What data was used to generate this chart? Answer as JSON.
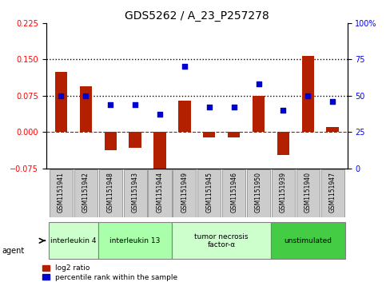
{
  "title": "GDS5262 / A_23_P257278",
  "samples": [
    "GSM1151941",
    "GSM1151942",
    "GSM1151948",
    "GSM1151943",
    "GSM1151944",
    "GSM1151949",
    "GSM1151945",
    "GSM1151946",
    "GSM1151950",
    "GSM1151939",
    "GSM1151940",
    "GSM1151947"
  ],
  "log2_ratio": [
    0.125,
    0.095,
    -0.038,
    -0.033,
    -0.085,
    0.065,
    -0.012,
    -0.012,
    0.075,
    -0.048,
    0.158,
    0.01
  ],
  "percentile": [
    50,
    50,
    44,
    44,
    37,
    70,
    42,
    42,
    58,
    40,
    50,
    46
  ],
  "ylim_left": [
    -0.075,
    0.225
  ],
  "ylim_right": [
    0,
    100
  ],
  "yticks_left": [
    -0.075,
    0,
    0.075,
    0.15,
    0.225
  ],
  "yticks_right": [
    0,
    25,
    50,
    75,
    100
  ],
  "hlines": [
    0.075,
    0.15
  ],
  "bar_color": "#B22000",
  "dot_color": "#0000CC",
  "zero_line_color": "#CC0000",
  "hline_color": "#000000",
  "groups": [
    {
      "label": "interleukin 4",
      "start": 0,
      "end": 2,
      "color": "#CCFFCC"
    },
    {
      "label": "interleukin 13",
      "start": 2,
      "end": 5,
      "color": "#AAFFAA"
    },
    {
      "label": "tumor necrosis\nfactor-α",
      "start": 5,
      "end": 9,
      "color": "#CCFFCC"
    },
    {
      "label": "unstimulated",
      "start": 9,
      "end": 12,
      "color": "#44CC44"
    }
  ],
  "agent_label": "agent",
  "legend_bar_label": "log2 ratio",
  "legend_dot_label": "percentile rank within the sample",
  "bg_color": "#FFFFFF",
  "sample_box_color": "#CCCCCC"
}
